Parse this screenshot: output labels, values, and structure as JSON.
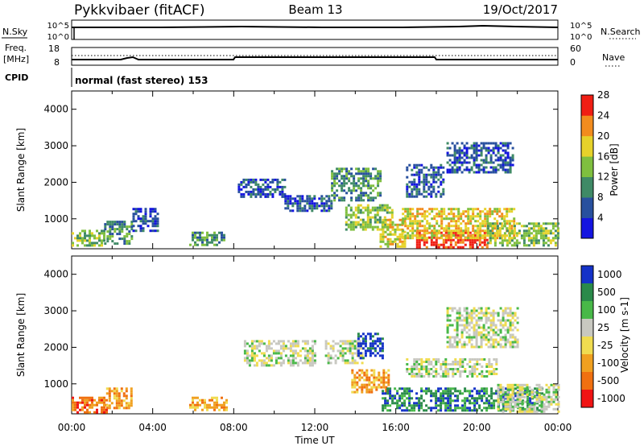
{
  "header": {
    "radar": "Pykkvibaer (fitACF)",
    "beam": "Beam 13",
    "date": "19/Oct/2017"
  },
  "top_panels": {
    "nsky": {
      "left_label": "N.Sky",
      "left_ticks": [
        "10^5",
        "10^0"
      ],
      "right_ticks": [
        "10^5",
        "10^0"
      ],
      "right_label": "N.Search"
    },
    "freq": {
      "left_label_1": "Freq.",
      "left_label_2": "[MHz]",
      "left_ticks": [
        "18",
        "8"
      ],
      "right_ticks": [
        "60",
        "0"
      ],
      "right_label": "Nave"
    },
    "cpid": {
      "label": "CPID",
      "text": "normal (fast stereo) 153"
    }
  },
  "chart_data": [
    {
      "type": "heatmap",
      "name": "power",
      "ylabel": "Slant Range [km]",
      "ylim": [
        180,
        4500
      ],
      "yticks": [
        "1000",
        "2000",
        "3000",
        "4000"
      ],
      "xlim": [
        0,
        24
      ],
      "colorbar": {
        "label": "Power [dB]",
        "ticks": [
          "4",
          "8",
          "12",
          "16",
          "20",
          "24",
          "28"
        ],
        "colors": [
          "#1414e0",
          "#28509e",
          "#3f8a66",
          "#7fbf3f",
          "#e6d22a",
          "#f28c1e",
          "#f01e14"
        ]
      },
      "regions": [
        {
          "t0": 0.0,
          "t1": 1.6,
          "r0": 250,
          "r1": 700,
          "level": 3
        },
        {
          "t0": 1.6,
          "t1": 3.0,
          "r0": 350,
          "r1": 950,
          "level": 2
        },
        {
          "t0": 3.0,
          "t1": 4.3,
          "r0": 650,
          "r1": 1300,
          "level": 1
        },
        {
          "t0": 5.8,
          "t1": 7.5,
          "r0": 300,
          "r1": 650,
          "level": 2
        },
        {
          "t0": 8.2,
          "t1": 10.5,
          "r0": 1600,
          "r1": 2100,
          "level": 1
        },
        {
          "t0": 10.5,
          "t1": 12.8,
          "r0": 1200,
          "r1": 1650,
          "level": 1
        },
        {
          "t0": 12.8,
          "t1": 15.2,
          "r0": 1500,
          "r1": 2400,
          "level": 2
        },
        {
          "t0": 13.5,
          "t1": 15.8,
          "r0": 700,
          "r1": 1400,
          "level": 3
        },
        {
          "t0": 15.2,
          "t1": 16.5,
          "r0": 250,
          "r1": 1000,
          "level": 4
        },
        {
          "t0": 16.5,
          "t1": 18.3,
          "r0": 1600,
          "r1": 2500,
          "level": 1
        },
        {
          "t0": 17.0,
          "t1": 20.5,
          "r0": 250,
          "r1": 650,
          "level": 6
        },
        {
          "t0": 16.3,
          "t1": 21.8,
          "r0": 500,
          "r1": 1300,
          "level": 4
        },
        {
          "t0": 18.5,
          "t1": 21.8,
          "r0": 2300,
          "r1": 3100,
          "level": 1
        },
        {
          "t0": 20.5,
          "t1": 24.0,
          "r0": 250,
          "r1": 900,
          "level": 3
        }
      ]
    },
    {
      "type": "heatmap",
      "name": "velocity",
      "ylabel": "Slant Range [km]",
      "ylim": [
        180,
        4500
      ],
      "yticks": [
        "1000",
        "2000",
        "3000",
        "4000"
      ],
      "xlabel": "Time UT",
      "xticks": [
        "00:00",
        "04:00",
        "08:00",
        "12:00",
        "16:00",
        "20:00",
        "00:00"
      ],
      "xlim": [
        0,
        24
      ],
      "colorbar": {
        "label": "Velocity [m s-1]",
        "ticks": [
          "1000",
          "500",
          "100",
          "25",
          "-25",
          "-100",
          "-500",
          "-1000"
        ],
        "colors": [
          "#1432c8",
          "#2a8a4a",
          "#48b848",
          "#c8c8c0",
          "#f0dc50",
          "#f0a020",
          "#f07010",
          "#f01414"
        ]
      },
      "regions": [
        {
          "t0": 0.0,
          "t1": 1.7,
          "r0": 250,
          "r1": 650,
          "level": 6
        },
        {
          "t0": 1.7,
          "t1": 3.0,
          "r0": 350,
          "r1": 900,
          "level": 5
        },
        {
          "t0": 5.8,
          "t1": 7.6,
          "r0": 300,
          "r1": 650,
          "level": 5
        },
        {
          "t0": 8.5,
          "t1": 12.0,
          "r0": 1500,
          "r1": 2200,
          "level": 3
        },
        {
          "t0": 12.5,
          "t1": 14.3,
          "r0": 1600,
          "r1": 2200,
          "level": 3
        },
        {
          "t0": 14.1,
          "t1": 15.3,
          "r0": 1700,
          "r1": 2400,
          "level": 0
        },
        {
          "t0": 13.8,
          "t1": 15.7,
          "r0": 800,
          "r1": 1400,
          "level": 5
        },
        {
          "t0": 15.3,
          "t1": 23.2,
          "r0": 250,
          "r1": 900,
          "level": 1
        },
        {
          "t0": 16.5,
          "t1": 21.0,
          "r0": 1200,
          "r1": 1700,
          "level": 3
        },
        {
          "t0": 18.5,
          "t1": 22.0,
          "r0": 2000,
          "r1": 3100,
          "level": 3
        },
        {
          "t0": 21.0,
          "t1": 24.0,
          "r0": 250,
          "r1": 1000,
          "level": 3
        }
      ]
    }
  ]
}
